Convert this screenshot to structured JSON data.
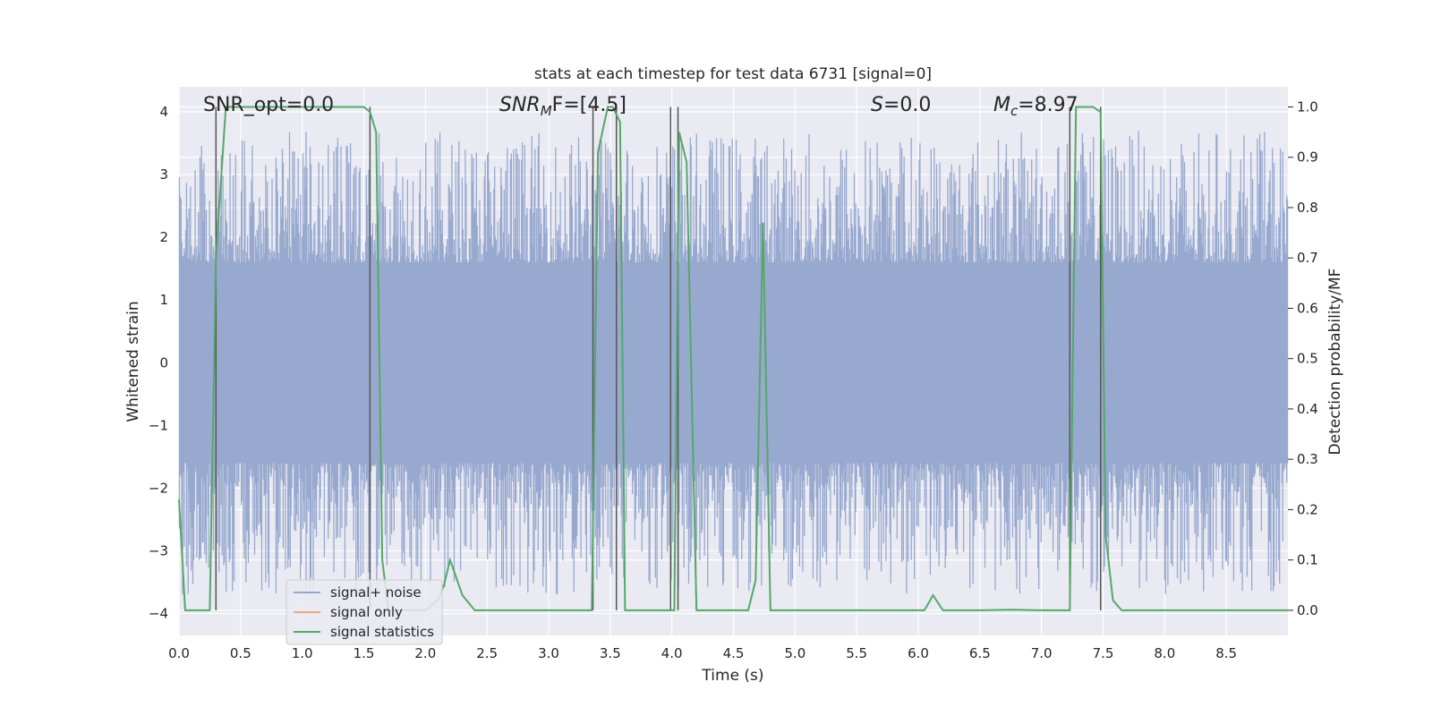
{
  "chart_data": {
    "type": "line",
    "title": "stats at each timestep for test data 6731 [signal=0]",
    "xlabel": "Time (s)",
    "ylabel": "Whitened strain",
    "ylabel_right": "Detection probability/MF",
    "xlim": [
      0.0,
      9.0
    ],
    "ylim": [
      -4.35,
      4.4
    ],
    "ylim_right": [
      -0.05,
      1.04
    ],
    "x_ticks": [
      "0.0",
      "0.5",
      "1.0",
      "1.5",
      "2.0",
      "2.5",
      "3.0",
      "3.5",
      "4.0",
      "4.5",
      "5.0",
      "5.5",
      "6.0",
      "6.5",
      "7.0",
      "7.5",
      "8.0",
      "8.5"
    ],
    "y_ticks": [
      "4",
      "3",
      "2",
      "1",
      "0",
      "−1",
      "−2",
      "−3",
      "−4"
    ],
    "y_right_ticks": [
      "1.0",
      "0.9",
      "0.8",
      "0.7",
      "0.6",
      "0.5",
      "0.4",
      "0.3",
      "0.2",
      "0.1",
      "0.0"
    ],
    "grid": true,
    "legend": {
      "location": "lower-left",
      "entries": [
        "signal+ noise",
        "signal only",
        "signal statistics"
      ]
    },
    "annotations": {
      "snr_opt_label": "SNR_opt=0.0",
      "snr_mf_main": "SNR",
      "snr_mf_sub": "M",
      "snr_mf_rest": "F=[4.5]",
      "s_main": "S",
      "s_rest": "=0.0",
      "mc_main": "M",
      "mc_sub": "c",
      "mc_rest": "=8.97"
    },
    "vertical_lines_x": [
      0.3,
      1.55,
      3.36,
      3.55,
      3.99,
      4.05,
      7.23,
      7.48
    ],
    "noise_series": {
      "name": "signal+ noise",
      "color": "#98a9cf",
      "typical_range": [
        -1.6,
        1.6
      ],
      "max_abs_peak": 3.7
    },
    "signal_only_series": {
      "name": "signal only",
      "color": "#e8a98a",
      "values": []
    },
    "statistics_series": {
      "name": "signal statistics",
      "color": "#55a868",
      "x": [
        0.0,
        0.05,
        0.25,
        0.3,
        0.38,
        0.45,
        1.5,
        1.55,
        1.6,
        1.65,
        1.7,
        2.0,
        2.1,
        2.15,
        2.2,
        2.3,
        2.4,
        2.6,
        3.0,
        3.35,
        3.4,
        3.48,
        3.52,
        3.58,
        3.62,
        3.7,
        3.98,
        4.02,
        4.06,
        4.12,
        4.2,
        4.5,
        4.62,
        4.68,
        4.74,
        4.8,
        5.0,
        6.0,
        6.05,
        6.12,
        6.2,
        6.5,
        6.75,
        7.0,
        7.23,
        7.28,
        7.33,
        7.42,
        7.48,
        7.52,
        7.58,
        7.65,
        8.0,
        9.0
      ],
      "y": [
        0.22,
        0.0,
        0.0,
        0.7,
        1.0,
        1.0,
        1.0,
        0.99,
        0.95,
        0.1,
        0.0,
        0.0,
        0.02,
        0.05,
        0.1,
        0.03,
        0.0,
        0.0,
        0.0,
        0.0,
        0.91,
        1.0,
        1.0,
        0.97,
        0.0,
        0.0,
        0.0,
        0.0,
        0.95,
        0.89,
        0.0,
        0.0,
        0.0,
        0.06,
        0.77,
        0.0,
        0.0,
        0.0,
        0.0,
        0.03,
        0.0,
        0.0,
        0.001,
        0.0,
        0.0,
        1.0,
        1.0,
        1.0,
        0.99,
        0.15,
        0.02,
        0.0,
        0.0,
        0.0
      ]
    }
  }
}
